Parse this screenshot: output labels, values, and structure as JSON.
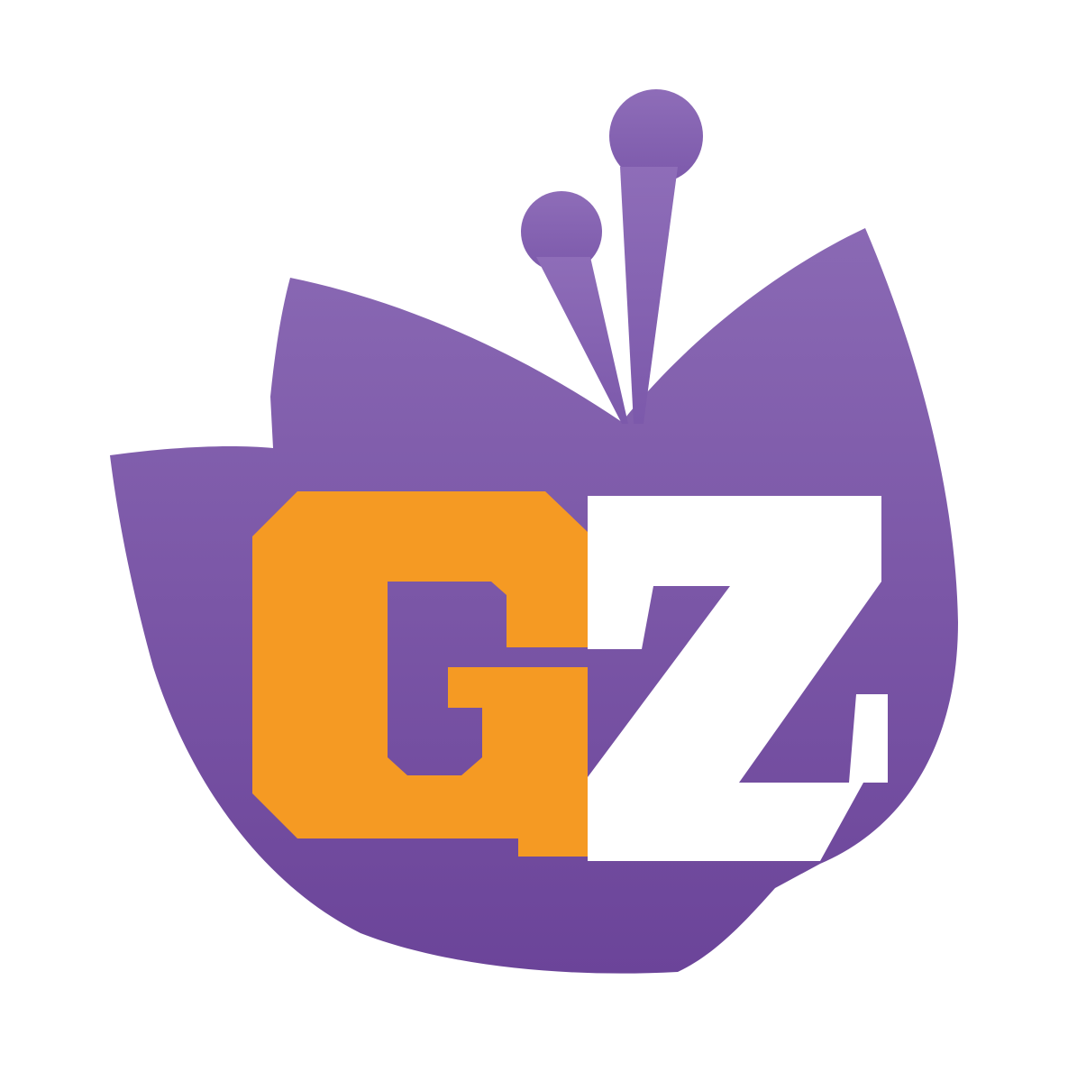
{
  "logo": {
    "name": "GZ lotus logo",
    "lettering": [
      "G",
      "Z"
    ],
    "colors": {
      "background": "#ffffff",
      "petal_top": "#8a69b4",
      "petal_bottom": "#6b4499",
      "letter_g": "#f59a23",
      "letter_z": "#ffffff"
    }
  }
}
